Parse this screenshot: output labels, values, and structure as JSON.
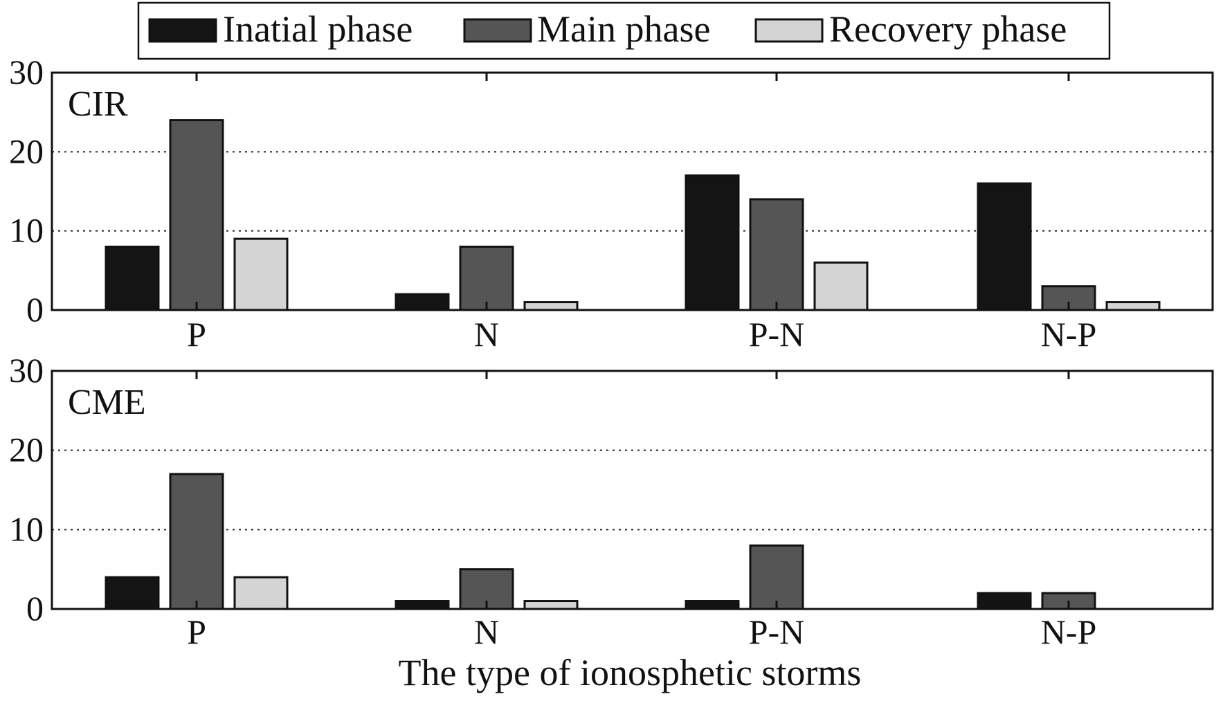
{
  "chart_data": {
    "type": "bar",
    "xlabel": "The type of ionosphetic storms",
    "ylabel": "",
    "ylim": [
      0,
      30
    ],
    "yticks": [
      "0",
      "10",
      "20",
      "30"
    ],
    "grid": "horizontal dotted",
    "legend": {
      "placement": "top-center",
      "entries": [
        {
          "label": "Inatial phase",
          "color": "#141414"
        },
        {
          "label": "Main phase",
          "color": "#555555"
        },
        {
          "label": "Recovery phase",
          "color": "#d4d4d4"
        }
      ]
    },
    "panels": [
      {
        "label": "CIR",
        "categories": [
          "P",
          "N",
          "P-N",
          "N-P"
        ],
        "series": [
          {
            "name": "Inatial phase",
            "values": [
              8,
              2,
              17,
              16
            ]
          },
          {
            "name": "Main phase",
            "values": [
              24,
              8,
              14,
              3
            ]
          },
          {
            "name": "Recovery phase",
            "values": [
              9,
              1,
              6,
              1
            ]
          }
        ]
      },
      {
        "label": "CME",
        "categories": [
          "P",
          "N",
          "P-N",
          "N-P"
        ],
        "series": [
          {
            "name": "Inatial phase",
            "values": [
              4,
              1,
              1,
              2
            ]
          },
          {
            "name": "Main phase",
            "values": [
              17,
              5,
              8,
              2
            ]
          },
          {
            "name": "Recovery phase",
            "values": [
              4,
              1,
              0,
              0
            ]
          }
        ]
      }
    ]
  }
}
